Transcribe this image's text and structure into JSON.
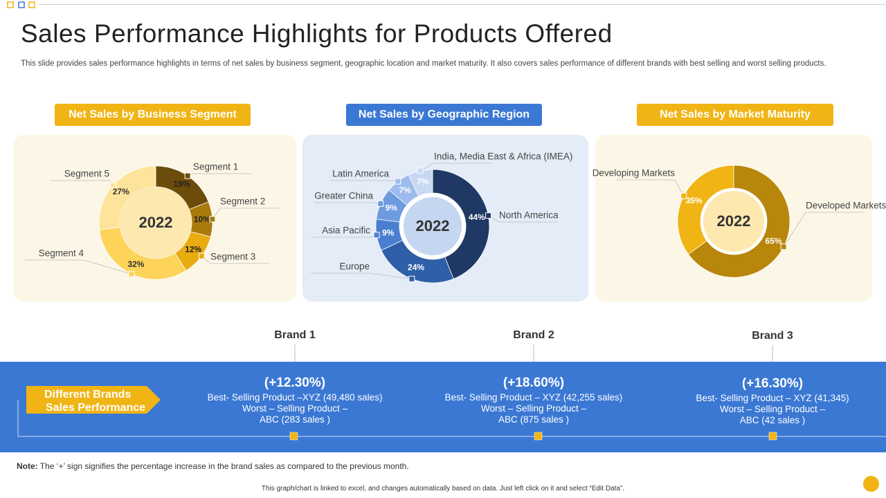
{
  "title": "Sales Performance Highlights for Products Offered",
  "subtitle": "This slide provides sales performance highlights in terms of net sales by business segment, geographic location and market maturity. It also covers sales performance of different brands with best selling and worst selling products.",
  "chart_data": [
    {
      "type": "pie",
      "title": "Net Sales by Business Segment",
      "center_label": "2022",
      "categories": [
        "Segment 1",
        "Segment 2",
        "Segment 3",
        "Segment 4",
        "Segment 5"
      ],
      "values": [
        19,
        10,
        12,
        32,
        27
      ],
      "value_labels": [
        "19%",
        "10%",
        "12%",
        "32%",
        "27%"
      ],
      "colors": [
        "#6b4c0a",
        "#a97a0c",
        "#e8ab10",
        "#fdd35a",
        "#fde49a"
      ]
    },
    {
      "type": "pie",
      "title": "Net Sales by Geographic Region",
      "center_label": "2022",
      "categories": [
        "North America",
        "Europe",
        "Asia Pacific",
        "Greater China",
        "Latin America",
        "India, Media East & Africa (IMEA)"
      ],
      "values": [
        44,
        24,
        9,
        9,
        7,
        7
      ],
      "value_labels": [
        "44%",
        "24%",
        "9%",
        "9%",
        "7%",
        "7%"
      ],
      "colors": [
        "#1f3864",
        "#2e5fa8",
        "#4a7fd0",
        "#6e9ae0",
        "#9dbbec",
        "#c9d8f2"
      ]
    },
    {
      "type": "pie",
      "title": "Net Sales by Market Maturity",
      "center_label": "2022",
      "categories": [
        "Developed Markets",
        "Developing Markets"
      ],
      "values": [
        65,
        35
      ],
      "value_labels": [
        "65%",
        "35%"
      ],
      "colors": [
        "#b8860b",
        "#f0b414"
      ]
    }
  ],
  "brands_label": [
    "Different Brands",
    "Sales Performance"
  ],
  "brands": [
    {
      "name": "Brand 1",
      "change": "(+12.30%)",
      "lines": [
        "Best- Selling Product –XYZ  (49,480 sales)",
        "Worst – Selling Product –",
        "ABC (283 sales )"
      ]
    },
    {
      "name": "Brand 2",
      "change": "(+18.60%)",
      "lines": [
        "Best- Selling Product – XYZ  (42,255 sales)",
        "Worst – Selling Product –",
        "ABC (875 sales )"
      ]
    },
    {
      "name": "Brand 3",
      "change": "(+16.30%)",
      "lines": [
        "Best- Selling Product – XYZ  (41,345)",
        "Worst – Selling Product –",
        "ABC (42 sales )"
      ]
    }
  ],
  "note_label": "Note:",
  "note": "The ‘+’ sign signifies the percentage increase in the brand sales as compared to the previous month.",
  "footer": "This graph/chart is linked to excel, and changes automatically based on data. Just left click on it and select “Edit Data”."
}
